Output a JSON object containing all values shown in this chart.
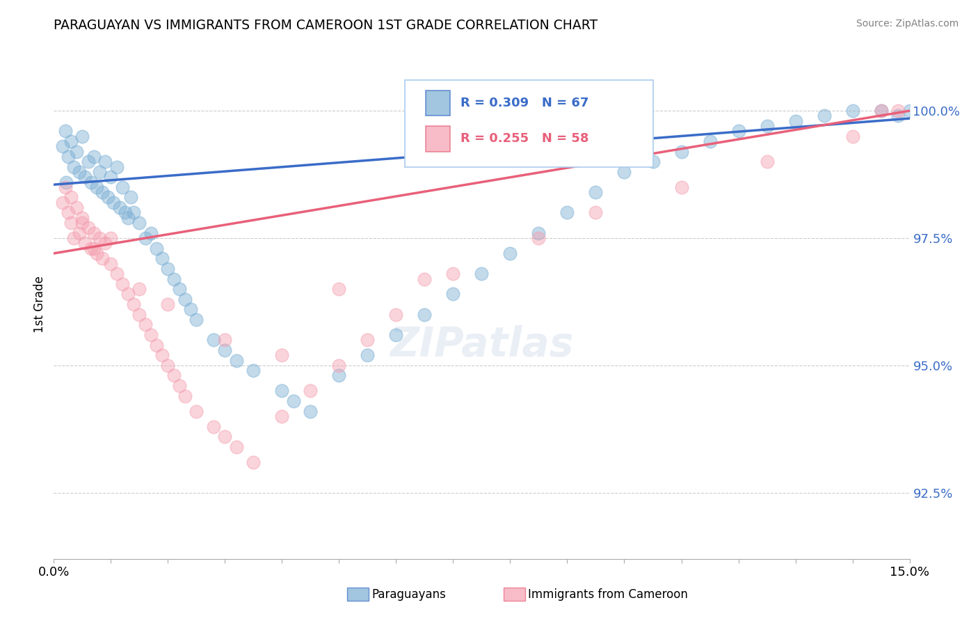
{
  "title": "PARAGUAYAN VS IMMIGRANTS FROM CAMEROON 1ST GRADE CORRELATION CHART",
  "source": "Source: ZipAtlas.com",
  "ylabel": "1st Grade",
  "xlim": [
    0.0,
    15.0
  ],
  "ylim": [
    91.2,
    101.2
  ],
  "yticks": [
    92.5,
    95.0,
    97.5,
    100.0
  ],
  "ytick_labels": [
    "92.5%",
    "95.0%",
    "97.5%",
    "100.0%"
  ],
  "blue_R": 0.309,
  "blue_N": 67,
  "pink_R": 0.255,
  "pink_N": 58,
  "blue_color": "#7BAFD4",
  "pink_color": "#F4A0B0",
  "blue_line_color": "#3A6CC8",
  "pink_line_color": "#E8607A",
  "legend_label_blue": "Paraguayans",
  "legend_label_pink": "Immigrants from Cameroon",
  "blue_scatter_x": [
    0.15,
    0.2,
    0.25,
    0.3,
    0.35,
    0.4,
    0.45,
    0.5,
    0.55,
    0.6,
    0.65,
    0.7,
    0.75,
    0.8,
    0.85,
    0.9,
    0.95,
    1.0,
    1.05,
    1.1,
    1.15,
    1.2,
    1.25,
    1.3,
    1.35,
    1.4,
    1.5,
    1.6,
    1.7,
    1.8,
    1.9,
    2.0,
    2.1,
    2.2,
    2.3,
    2.4,
    2.5,
    2.8,
    3.0,
    3.2,
    3.5,
    4.0,
    4.2,
    4.5,
    5.0,
    5.5,
    6.0,
    6.5,
    7.0,
    7.5,
    8.0,
    8.5,
    9.0,
    9.5,
    10.0,
    10.5,
    11.0,
    11.5,
    12.0,
    12.5,
    13.0,
    13.5,
    14.0,
    14.5,
    14.8,
    15.0,
    0.22
  ],
  "blue_scatter_y": [
    99.3,
    99.6,
    99.1,
    99.4,
    98.9,
    99.2,
    98.8,
    99.5,
    98.7,
    99.0,
    98.6,
    99.1,
    98.5,
    98.8,
    98.4,
    99.0,
    98.3,
    98.7,
    98.2,
    98.9,
    98.1,
    98.5,
    98.0,
    97.9,
    98.3,
    98.0,
    97.8,
    97.5,
    97.6,
    97.3,
    97.1,
    96.9,
    96.7,
    96.5,
    96.3,
    96.1,
    95.9,
    95.5,
    95.3,
    95.1,
    94.9,
    94.5,
    94.3,
    94.1,
    94.8,
    95.2,
    95.6,
    96.0,
    96.4,
    96.8,
    97.2,
    97.6,
    98.0,
    98.4,
    98.8,
    99.0,
    99.2,
    99.4,
    99.6,
    99.7,
    99.8,
    99.9,
    100.0,
    100.0,
    99.9,
    100.0,
    98.6
  ],
  "pink_scatter_x": [
    0.15,
    0.2,
    0.25,
    0.3,
    0.35,
    0.4,
    0.45,
    0.5,
    0.55,
    0.6,
    0.65,
    0.7,
    0.75,
    0.8,
    0.85,
    0.9,
    1.0,
    1.1,
    1.2,
    1.3,
    1.4,
    1.5,
    1.6,
    1.7,
    1.8,
    1.9,
    2.0,
    2.1,
    2.2,
    2.3,
    2.5,
    2.8,
    3.0,
    3.2,
    3.5,
    4.0,
    4.5,
    5.0,
    5.5,
    6.0,
    7.0,
    8.5,
    9.5,
    11.0,
    12.5,
    14.0,
    14.5,
    14.8,
    0.3,
    0.5,
    0.7,
    1.0,
    1.5,
    2.0,
    3.0,
    4.0,
    5.0,
    6.5
  ],
  "pink_scatter_y": [
    98.2,
    98.5,
    98.0,
    97.8,
    97.5,
    98.1,
    97.6,
    97.9,
    97.4,
    97.7,
    97.3,
    97.6,
    97.2,
    97.5,
    97.1,
    97.4,
    97.0,
    96.8,
    96.6,
    96.4,
    96.2,
    96.0,
    95.8,
    95.6,
    95.4,
    95.2,
    95.0,
    94.8,
    94.6,
    94.4,
    94.1,
    93.8,
    93.6,
    93.4,
    93.1,
    94.0,
    94.5,
    95.0,
    95.5,
    96.0,
    96.8,
    97.5,
    98.0,
    98.5,
    99.0,
    99.5,
    100.0,
    100.0,
    98.3,
    97.8,
    97.3,
    97.5,
    96.5,
    96.2,
    95.5,
    95.2,
    96.5,
    96.7
  ],
  "blue_trendline_x0": 0.0,
  "blue_trendline_y0": 98.55,
  "blue_trendline_x1": 15.0,
  "blue_trendline_y1": 99.85,
  "pink_trendline_x0": 0.0,
  "pink_trendline_y0": 97.2,
  "pink_trendline_x1": 15.0,
  "pink_trendline_y1": 100.0
}
